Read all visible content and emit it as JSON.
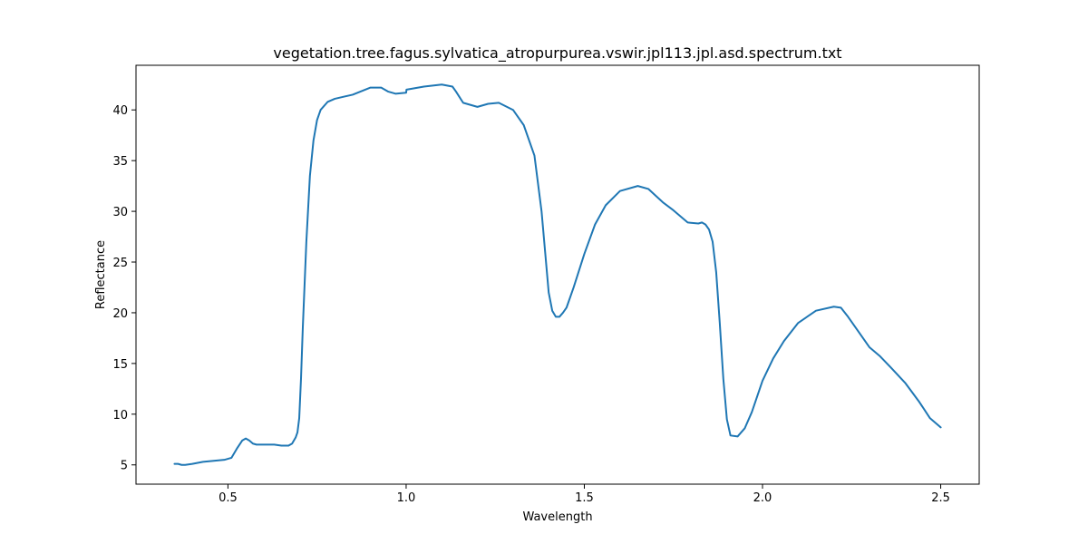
{
  "chart_data": {
    "type": "line",
    "title": "vegetation.tree.fagus.sylvatica_atropurpurea.vswir.jpl113.jpl.asd.spectrum.txt",
    "xlabel": "Wavelength",
    "ylabel": "Reflectance",
    "xlim": [
      0.242,
      2.608
    ],
    "ylim": [
      3.1,
      44.4
    ],
    "xticks": [
      0.5,
      1.0,
      1.5,
      2.0,
      2.5
    ],
    "xtick_labels": [
      "0.5",
      "1.0",
      "1.5",
      "2.0",
      "2.5"
    ],
    "yticks": [
      5,
      10,
      15,
      20,
      25,
      30,
      35,
      40
    ],
    "ytick_labels": [
      "5",
      "10",
      "15",
      "20",
      "25",
      "30",
      "35",
      "40"
    ],
    "grid": false,
    "legend": "none",
    "line_color": "#1f77b4",
    "series": [
      {
        "x": [
          0.35,
          0.36,
          0.37,
          0.38,
          0.4,
          0.43,
          0.46,
          0.49,
          0.51,
          0.525,
          0.54,
          0.55,
          0.56,
          0.57,
          0.58,
          0.59,
          0.61,
          0.63,
          0.65,
          0.67,
          0.68,
          0.69,
          0.695,
          0.7,
          0.705,
          0.71,
          0.72,
          0.73,
          0.74,
          0.75,
          0.76,
          0.78,
          0.8,
          0.85,
          0.9,
          0.93,
          0.95,
          0.97,
          1.0,
          1.001,
          1.05,
          1.1,
          1.13,
          1.14,
          1.16,
          1.2,
          1.23,
          1.26,
          1.3,
          1.33,
          1.36,
          1.38,
          1.39,
          1.4,
          1.41,
          1.42,
          1.43,
          1.44,
          1.45,
          1.47,
          1.5,
          1.53,
          1.56,
          1.6,
          1.65,
          1.68,
          1.72,
          1.75,
          1.79,
          1.82,
          1.83,
          1.84,
          1.85,
          1.86,
          1.87,
          1.88,
          1.89,
          1.9,
          1.91,
          1.93,
          1.95,
          1.97,
          2.0,
          2.03,
          2.06,
          2.1,
          2.15,
          2.2,
          2.22,
          2.24,
          2.27,
          2.3,
          2.33,
          2.36,
          2.4,
          2.44,
          2.47,
          2.49,
          2.5
        ],
        "y": [
          5.1,
          5.1,
          5.0,
          5.0,
          5.1,
          5.3,
          5.4,
          5.5,
          5.7,
          6.6,
          7.4,
          7.6,
          7.4,
          7.1,
          7.0,
          7.0,
          7.0,
          7.0,
          6.9,
          6.9,
          7.1,
          7.7,
          8.2,
          9.6,
          13.5,
          18.5,
          27.0,
          33.5,
          37.0,
          39.0,
          40.0,
          40.8,
          41.1,
          41.5,
          42.2,
          42.2,
          41.8,
          41.6,
          41.7,
          42.0,
          42.3,
          42.5,
          42.3,
          41.8,
          40.7,
          40.3,
          40.6,
          40.7,
          40.0,
          38.5,
          35.5,
          30.0,
          26.0,
          22.0,
          20.2,
          19.6,
          19.6,
          20.0,
          20.5,
          22.5,
          25.8,
          28.7,
          30.6,
          32.0,
          32.5,
          32.2,
          30.9,
          30.1,
          28.9,
          28.8,
          28.9,
          28.7,
          28.2,
          27.0,
          24.0,
          19.0,
          13.5,
          9.5,
          7.9,
          7.8,
          8.6,
          10.2,
          13.3,
          15.5,
          17.2,
          19.0,
          20.2,
          20.6,
          20.5,
          19.6,
          18.1,
          16.6,
          15.7,
          14.6,
          13.1,
          11.2,
          9.6,
          9.0,
          8.7
        ]
      }
    ]
  }
}
